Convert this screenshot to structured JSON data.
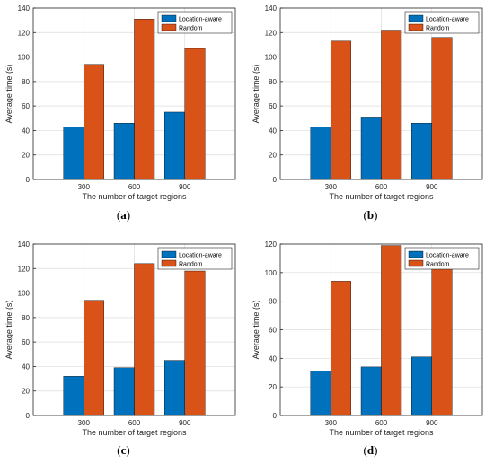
{
  "chart_data": [
    {
      "type": "bar",
      "caption": "a",
      "categories": [
        "300",
        "600",
        "900"
      ],
      "series": [
        {
          "name": "Location-aware",
          "values": [
            43,
            46,
            55
          ]
        },
        {
          "name": "Random",
          "values": [
            94,
            131,
            107
          ]
        }
      ],
      "xlabel": "The number of target regions",
      "ylabel": "Average time (s)",
      "ylim": [
        0,
        140
      ],
      "yticks": [
        "0",
        "20",
        "40",
        "60",
        "80",
        "100",
        "120",
        "140"
      ],
      "grid": true,
      "legend_position": "top-right"
    },
    {
      "type": "bar",
      "caption": "b",
      "categories": [
        "300",
        "600",
        "900"
      ],
      "series": [
        {
          "name": "Location-aware",
          "values": [
            43,
            51,
            46
          ]
        },
        {
          "name": "Random",
          "values": [
            113,
            122,
            116
          ]
        }
      ],
      "xlabel": "The number of target regions",
      "ylabel": "Average time (s)",
      "ylim": [
        0,
        140
      ],
      "yticks": [
        "0",
        "20",
        "40",
        "60",
        "80",
        "100",
        "120",
        "140"
      ],
      "grid": true,
      "legend_position": "top-right"
    },
    {
      "type": "bar",
      "caption": "c",
      "categories": [
        "300",
        "600",
        "900"
      ],
      "series": [
        {
          "name": "Location-aware",
          "values": [
            32,
            39,
            45
          ]
        },
        {
          "name": "Random",
          "values": [
            94,
            124,
            118
          ]
        }
      ],
      "xlabel": "The number of target regions",
      "ylabel": "Average time (s)",
      "ylim": [
        0,
        140
      ],
      "yticks": [
        "0",
        "20",
        "40",
        "60",
        "80",
        "100",
        "120",
        "140"
      ],
      "grid": true,
      "legend_position": "top-right"
    },
    {
      "type": "bar",
      "caption": "d",
      "categories": [
        "300",
        "600",
        "900"
      ],
      "series": [
        {
          "name": "Location-aware",
          "values": [
            31,
            34,
            41
          ]
        },
        {
          "name": "Random",
          "values": [
            94,
            119,
            105
          ]
        }
      ],
      "xlabel": "The number of target regions",
      "ylabel": "Average time (s)",
      "ylim": [
        0,
        120
      ],
      "yticks": [
        "0",
        "20",
        "40",
        "60",
        "80",
        "100",
        "120"
      ],
      "grid": true,
      "legend_position": "top-right"
    }
  ],
  "colors": {
    "location_aware": "#0072BD",
    "random": "#D95319",
    "grid": "#dcdcdc",
    "axis": "#262626"
  }
}
